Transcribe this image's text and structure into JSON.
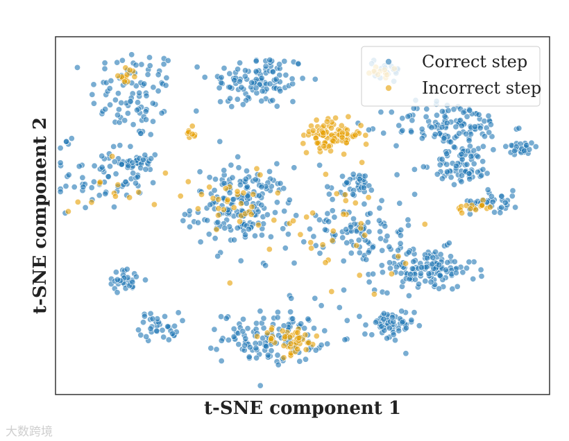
{
  "chart_data": {
    "type": "scatter",
    "title": "",
    "xlabel": "t-SNE component 1",
    "ylabel": "t-SNE component 2",
    "xlim": [
      -100,
      100
    ],
    "ylim": [
      -100,
      100
    ],
    "ticks_visible": false,
    "grid": false,
    "legend": "top-right",
    "series": [
      {
        "name": "Correct step",
        "color": "#1f77b4",
        "clusters": [
          {
            "cx": -68,
            "cy": 68,
            "sx": 9,
            "sy": 13,
            "n": 90
          },
          {
            "cx": -18,
            "cy": 75,
            "sx": 10,
            "sy": 8,
            "n": 110
          },
          {
            "cx": -82,
            "cy": 20,
            "sx": 9,
            "sy": 8,
            "n": 60
          },
          {
            "cx": -66,
            "cy": 30,
            "sx": 4,
            "sy": 4,
            "n": 35
          },
          {
            "cx": -72,
            "cy": -36,
            "sx": 4,
            "sy": 3,
            "n": 30
          },
          {
            "cx": -58,
            "cy": -62,
            "sx": 4,
            "sy": 4,
            "n": 35
          },
          {
            "cx": -25,
            "cy": 5,
            "sx": 10,
            "sy": 11,
            "n": 170
          },
          {
            "cx": -12,
            "cy": -68,
            "sx": 10,
            "sy": 7,
            "n": 130
          },
          {
            "cx": 35,
            "cy": -62,
            "sx": 5,
            "sy": 5,
            "n": 55
          },
          {
            "cx": 50,
            "cy": -30,
            "sx": 10,
            "sy": 6,
            "n": 130
          },
          {
            "cx": 25,
            "cy": -8,
            "sx": 8,
            "sy": 9,
            "n": 60
          },
          {
            "cx": 23,
            "cy": 18,
            "sx": 3,
            "sy": 3,
            "n": 30
          },
          {
            "cx": 60,
            "cy": 50,
            "sx": 12,
            "sy": 7,
            "n": 120
          },
          {
            "cx": 65,
            "cy": 28,
            "sx": 6,
            "sy": 5,
            "n": 70
          },
          {
            "cx": 88,
            "cy": 38,
            "sx": 4,
            "sy": 2,
            "n": 25
          },
          {
            "cx": 78,
            "cy": 8,
            "sx": 5,
            "sy": 3,
            "n": 35
          },
          {
            "cx": 10,
            "cy": -5,
            "sx": 18,
            "sy": 20,
            "n": 60
          },
          {
            "cx": 35,
            "cy": 82,
            "sx": 3,
            "sy": 3,
            "n": 20
          },
          {
            "cx": -95,
            "cy": 42,
            "sx": 2,
            "sy": 2,
            "n": 5
          }
        ]
      },
      {
        "name": "Incorrect step",
        "color": "#e69f00",
        "clusters": [
          {
            "cx": 12,
            "cy": 45,
            "sx": 6,
            "sy": 4,
            "n": 90
          },
          {
            "cx": -72,
            "cy": 78,
            "sx": 2,
            "sy": 2,
            "n": 12
          },
          {
            "cx": -45,
            "cy": 45,
            "sx": 2,
            "sy": 2,
            "n": 8
          },
          {
            "cx": -5,
            "cy": -70,
            "sx": 6,
            "sy": 4,
            "n": 45
          },
          {
            "cx": 70,
            "cy": 5,
            "sx": 4,
            "sy": 2,
            "n": 15
          },
          {
            "cx": 33,
            "cy": 80,
            "sx": 3,
            "sy": 2,
            "n": 12
          },
          {
            "cx": -30,
            "cy": 10,
            "sx": 8,
            "sy": 10,
            "n": 30
          },
          {
            "cx": 15,
            "cy": -10,
            "sx": 15,
            "sy": 15,
            "n": 35
          },
          {
            "cx": -75,
            "cy": 20,
            "sx": 10,
            "sy": 12,
            "n": 14
          }
        ]
      }
    ]
  },
  "watermark": "大数跨境"
}
